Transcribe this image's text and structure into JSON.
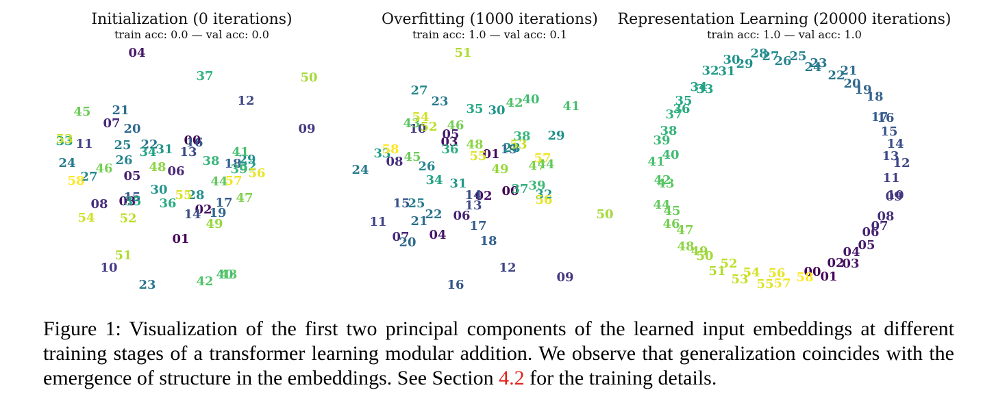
{
  "chart_data": [
    {
      "type": "scatter",
      "title": "Initialization (0 iterations)",
      "subtitle": "train acc: 0.0 — val acc: 0.0",
      "xlim": [
        60,
        480
      ],
      "ylim": [
        430,
        60
      ],
      "points": [
        {
          "label": "00",
          "x": 281,
          "y": 205
        },
        {
          "label": "01",
          "x": 264,
          "y": 349
        },
        {
          "label": "02",
          "x": 297,
          "y": 306
        },
        {
          "label": "03",
          "x": 186,
          "y": 294
        },
        {
          "label": "04",
          "x": 200,
          "y": 77
        },
        {
          "label": "05",
          "x": 193,
          "y": 257
        },
        {
          "label": "06",
          "x": 257,
          "y": 250
        },
        {
          "label": "07",
          "x": 163,
          "y": 180
        },
        {
          "label": "08",
          "x": 145,
          "y": 298
        },
        {
          "label": "09",
          "x": 448,
          "y": 188
        },
        {
          "label": "10",
          "x": 159,
          "y": 391
        },
        {
          "label": "11",
          "x": 123,
          "y": 210
        },
        {
          "label": "12",
          "x": 359,
          "y": 147
        },
        {
          "label": "13",
          "x": 275,
          "y": 222
        },
        {
          "label": "14",
          "x": 281,
          "y": 313
        },
        {
          "label": "15",
          "x": 193,
          "y": 288
        },
        {
          "label": "16",
          "x": 284,
          "y": 208
        },
        {
          "label": "17",
          "x": 327,
          "y": 296
        },
        {
          "label": "18",
          "x": 340,
          "y": 239
        },
        {
          "label": "19",
          "x": 318,
          "y": 311
        },
        {
          "label": "20",
          "x": 193,
          "y": 188
        },
        {
          "label": "21",
          "x": 176,
          "y": 161
        },
        {
          "label": "22",
          "x": 218,
          "y": 211
        },
        {
          "label": "23",
          "x": 215,
          "y": 416
        },
        {
          "label": "24",
          "x": 98,
          "y": 238
        },
        {
          "label": "25",
          "x": 179,
          "y": 212
        },
        {
          "label": "26",
          "x": 181,
          "y": 234
        },
        {
          "label": "27",
          "x": 130,
          "y": 258
        },
        {
          "label": "28",
          "x": 286,
          "y": 285
        },
        {
          "label": "29",
          "x": 361,
          "y": 233
        },
        {
          "label": "30",
          "x": 232,
          "y": 277
        },
        {
          "label": "31",
          "x": 240,
          "y": 218
        },
        {
          "label": "32",
          "x": 362,
          "y": 243
        },
        {
          "label": "33",
          "x": 94,
          "y": 206
        },
        {
          "label": "34",
          "x": 216,
          "y": 222
        },
        {
          "label": "35",
          "x": 194,
          "y": 294
        },
        {
          "label": "36",
          "x": 245,
          "y": 297
        },
        {
          "label": "37",
          "x": 299,
          "y": 111
        },
        {
          "label": "38",
          "x": 308,
          "y": 235
        },
        {
          "label": "39",
          "x": 349,
          "y": 247
        },
        {
          "label": "40",
          "x": 328,
          "y": 401
        },
        {
          "label": "41",
          "x": 351,
          "y": 222
        },
        {
          "label": "42",
          "x": 299,
          "y": 411
        },
        {
          "label": "43",
          "x": 334,
          "y": 401
        },
        {
          "label": "44",
          "x": 320,
          "y": 265
        },
        {
          "label": "45",
          "x": 120,
          "y": 163
        },
        {
          "label": "46",
          "x": 152,
          "y": 246
        },
        {
          "label": "47",
          "x": 357,
          "y": 289
        },
        {
          "label": "48",
          "x": 230,
          "y": 244
        },
        {
          "label": "49",
          "x": 313,
          "y": 327
        },
        {
          "label": "50",
          "x": 451,
          "y": 113
        },
        {
          "label": "51",
          "x": 180,
          "y": 373
        },
        {
          "label": "52",
          "x": 187,
          "y": 319
        },
        {
          "label": "53",
          "x": 94,
          "y": 203
        },
        {
          "label": "54",
          "x": 126,
          "y": 318
        },
        {
          "label": "55",
          "x": 268,
          "y": 285
        },
        {
          "label": "56",
          "x": 375,
          "y": 253
        },
        {
          "label": "57",
          "x": 341,
          "y": 264
        },
        {
          "label": "58",
          "x": 111,
          "y": 264
        }
      ]
    },
    {
      "type": "scatter",
      "title": "Overfitting (1000 iterations)",
      "subtitle": "train acc: 1.0 — val acc: 0.1",
      "xlim": [
        510,
        900
      ],
      "ylim": [
        430,
        60
      ],
      "points": [
        {
          "label": "00",
          "x": 745,
          "y": 279
        },
        {
          "label": "01",
          "x": 717,
          "y": 225
        },
        {
          "label": "02",
          "x": 706,
          "y": 286
        },
        {
          "label": "03",
          "x": 656,
          "y": 207
        },
        {
          "label": "04",
          "x": 639,
          "y": 343
        },
        {
          "label": "05",
          "x": 658,
          "y": 196
        },
        {
          "label": "06",
          "x": 674,
          "y": 315
        },
        {
          "label": "07",
          "x": 585,
          "y": 346
        },
        {
          "label": "08",
          "x": 576,
          "y": 236
        },
        {
          "label": "09",
          "x": 825,
          "y": 405
        },
        {
          "label": "10",
          "x": 610,
          "y": 188
        },
        {
          "label": "11",
          "x": 552,
          "y": 324
        },
        {
          "label": "12",
          "x": 741,
          "y": 391
        },
        {
          "label": "13",
          "x": 691,
          "y": 300
        },
        {
          "label": "14",
          "x": 691,
          "y": 285
        },
        {
          "label": "15",
          "x": 586,
          "y": 297
        },
        {
          "label": "16",
          "x": 665,
          "y": 416
        },
        {
          "label": "17",
          "x": 698,
          "y": 330
        },
        {
          "label": "18",
          "x": 713,
          "y": 352
        },
        {
          "label": "19",
          "x": 743,
          "y": 218
        },
        {
          "label": "20",
          "x": 595,
          "y": 354
        },
        {
          "label": "21",
          "x": 612,
          "y": 323
        },
        {
          "label": "22",
          "x": 633,
          "y": 313
        },
        {
          "label": "23",
          "x": 642,
          "y": 148
        },
        {
          "label": "24",
          "x": 526,
          "y": 248
        },
        {
          "label": "25",
          "x": 608,
          "y": 297
        },
        {
          "label": "26",
          "x": 623,
          "y": 243
        },
        {
          "label": "27",
          "x": 612,
          "y": 132
        },
        {
          "label": "28",
          "x": 747,
          "y": 216
        },
        {
          "label": "29",
          "x": 812,
          "y": 198
        },
        {
          "label": "30",
          "x": 725,
          "y": 161
        },
        {
          "label": "31",
          "x": 669,
          "y": 268
        },
        {
          "label": "32",
          "x": 794,
          "y": 284
        },
        {
          "label": "33",
          "x": 558,
          "y": 224
        },
        {
          "label": "34",
          "x": 634,
          "y": 263
        },
        {
          "label": "35",
          "x": 693,
          "y": 159
        },
        {
          "label": "36",
          "x": 657,
          "y": 218
        },
        {
          "label": "37",
          "x": 759,
          "y": 276
        },
        {
          "label": "38",
          "x": 762,
          "y": 199
        },
        {
          "label": "39",
          "x": 784,
          "y": 271
        },
        {
          "label": "40",
          "x": 775,
          "y": 145
        },
        {
          "label": "41",
          "x": 834,
          "y": 155
        },
        {
          "label": "42",
          "x": 751,
          "y": 150
        },
        {
          "label": "43",
          "x": 601,
          "y": 180
        },
        {
          "label": "44",
          "x": 797,
          "y": 240
        },
        {
          "label": "45",
          "x": 602,
          "y": 229
        },
        {
          "label": "46",
          "x": 665,
          "y": 183
        },
        {
          "label": "47",
          "x": 784,
          "y": 242
        },
        {
          "label": "48",
          "x": 693,
          "y": 211
        },
        {
          "label": "49",
          "x": 730,
          "y": 247
        },
        {
          "label": "50",
          "x": 883,
          "y": 313
        },
        {
          "label": "51",
          "x": 676,
          "y": 77
        },
        {
          "label": "52",
          "x": 626,
          "y": 185
        },
        {
          "label": "53",
          "x": 757,
          "y": 211
        },
        {
          "label": "54",
          "x": 614,
          "y": 171
        },
        {
          "label": "55",
          "x": 698,
          "y": 228
        },
        {
          "label": "56",
          "x": 794,
          "y": 292
        },
        {
          "label": "57",
          "x": 792,
          "y": 231
        },
        {
          "label": "58",
          "x": 570,
          "y": 218
        }
      ]
    },
    {
      "type": "scatter",
      "title": "Representation Learning (20000 iterations)",
      "subtitle": "train acc: 1.0 — val acc: 1.0",
      "xlim": [
        940,
        1340
      ],
      "ylim": [
        430,
        60
      ],
      "points": [
        {
          "label": "00",
          "x": 1186,
          "y": 397
        },
        {
          "label": "01",
          "x": 1210,
          "y": 404
        },
        {
          "label": "02",
          "x": 1220,
          "y": 384
        },
        {
          "label": "03",
          "x": 1242,
          "y": 385
        },
        {
          "label": "04",
          "x": 1243,
          "y": 368
        },
        {
          "label": "05",
          "x": 1265,
          "y": 358
        },
        {
          "label": "06",
          "x": 1271,
          "y": 339
        },
        {
          "label": "07",
          "x": 1284,
          "y": 330
        },
        {
          "label": "08",
          "x": 1293,
          "y": 316
        },
        {
          "label": "09",
          "x": 1305,
          "y": 287
        },
        {
          "label": "10",
          "x": 1307,
          "y": 285
        },
        {
          "label": "11",
          "x": 1301,
          "y": 260
        },
        {
          "label": "12",
          "x": 1316,
          "y": 238
        },
        {
          "label": "13",
          "x": 1300,
          "y": 228
        },
        {
          "label": "14",
          "x": 1307,
          "y": 210
        },
        {
          "label": "15",
          "x": 1298,
          "y": 192
        },
        {
          "label": "16",
          "x": 1293,
          "y": 172
        },
        {
          "label": "17",
          "x": 1284,
          "y": 171
        },
        {
          "label": "18",
          "x": 1277,
          "y": 141
        },
        {
          "label": "19",
          "x": 1260,
          "y": 131
        },
        {
          "label": "20",
          "x": 1244,
          "y": 122
        },
        {
          "label": "21",
          "x": 1239,
          "y": 103
        },
        {
          "label": "22",
          "x": 1221,
          "y": 110
        },
        {
          "label": "23",
          "x": 1195,
          "y": 92
        },
        {
          "label": "24",
          "x": 1187,
          "y": 98
        },
        {
          "label": "25",
          "x": 1165,
          "y": 82
        },
        {
          "label": "26",
          "x": 1143,
          "y": 89
        },
        {
          "label": "27",
          "x": 1125,
          "y": 82
        },
        {
          "label": "28",
          "x": 1108,
          "y": 78
        },
        {
          "label": "29",
          "x": 1087,
          "y": 93
        },
        {
          "label": "30",
          "x": 1068,
          "y": 87
        },
        {
          "label": "31",
          "x": 1061,
          "y": 104
        },
        {
          "label": "32",
          "x": 1037,
          "y": 103
        },
        {
          "label": "33",
          "x": 1029,
          "y": 130
        },
        {
          "label": "34",
          "x": 1020,
          "y": 127
        },
        {
          "label": "35",
          "x": 998,
          "y": 147
        },
        {
          "label": "36",
          "x": 995,
          "y": 159
        },
        {
          "label": "37",
          "x": 984,
          "y": 167
        },
        {
          "label": "38",
          "x": 976,
          "y": 191
        },
        {
          "label": "39",
          "x": 966,
          "y": 205
        },
        {
          "label": "40",
          "x": 979,
          "y": 226
        },
        {
          "label": "41",
          "x": 958,
          "y": 236
        },
        {
          "label": "42",
          "x": 967,
          "y": 263
        },
        {
          "label": "43",
          "x": 972,
          "y": 268
        },
        {
          "label": "44",
          "x": 966,
          "y": 299
        },
        {
          "label": "45",
          "x": 981,
          "y": 308
        },
        {
          "label": "46",
          "x": 980,
          "y": 327
        },
        {
          "label": "47",
          "x": 1000,
          "y": 336
        },
        {
          "label": "48",
          "x": 1001,
          "y": 360
        },
        {
          "label": "49",
          "x": 1021,
          "y": 367
        },
        {
          "label": "50",
          "x": 1029,
          "y": 374
        },
        {
          "label": "51",
          "x": 1047,
          "y": 396
        },
        {
          "label": "52",
          "x": 1064,
          "y": 385
        },
        {
          "label": "53",
          "x": 1080,
          "y": 408
        },
        {
          "label": "54",
          "x": 1097,
          "y": 398
        },
        {
          "label": "55",
          "x": 1117,
          "y": 415
        },
        {
          "label": "56",
          "x": 1134,
          "y": 399
        },
        {
          "label": "57",
          "x": 1142,
          "y": 414
        },
        {
          "label": "58",
          "x": 1175,
          "y": 405
        }
      ]
    }
  ],
  "caption": {
    "text_before": "Figure 1: Visualization of the first two principal components of the learned input embeddings at different training stages of a transformer learning modular addition. We observe that generalization coincides with the emergence of structure in the embeddings. See Section ",
    "ref": "4.2",
    "text_after": " for the training details.",
    "ref_color": "#e0221a"
  },
  "colormap": "viridis"
}
